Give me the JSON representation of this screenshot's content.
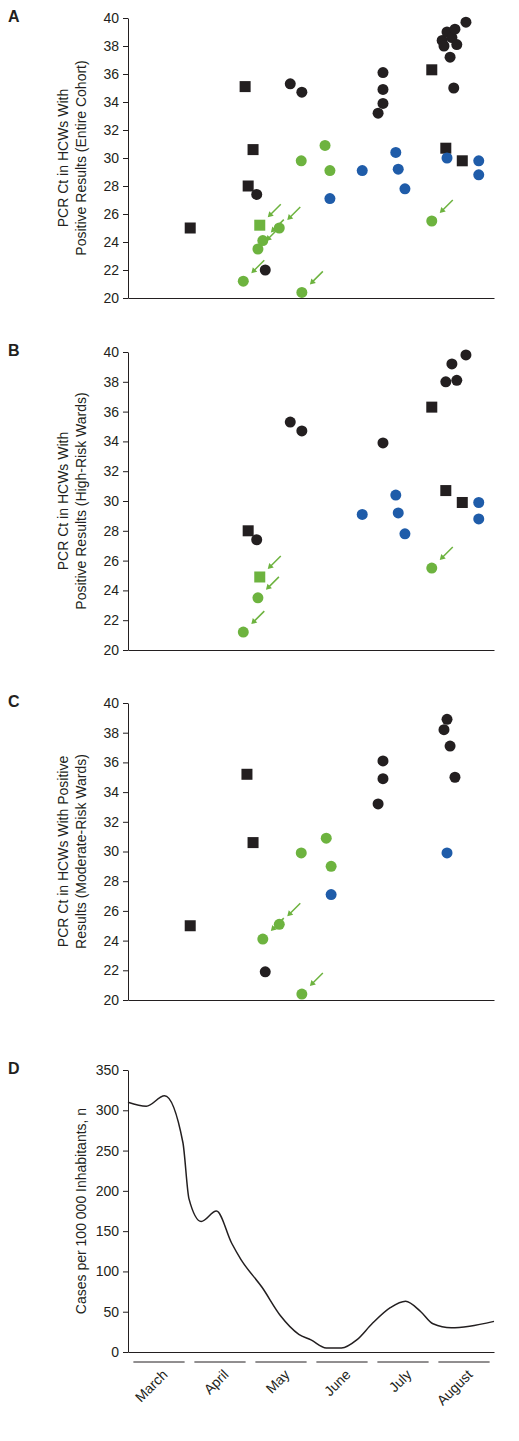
{
  "chart_data": [
    {
      "type": "scatter",
      "title": "A",
      "y_label": [
        "PCR Ct in HCWs With",
        "Positive Results (Entire Cohort)"
      ],
      "xlim": [
        0,
        6
      ],
      "ylim": [
        20,
        40
      ],
      "yticks": [
        20,
        22,
        24,
        26,
        28,
        30,
        32,
        34,
        36,
        38,
        40
      ],
      "tick_labels": "y",
      "series": [
        {
          "color": "#231f20",
          "marker": "circle",
          "x": [
            2.11,
            2.25,
            2.66,
            2.85,
            4.1,
            4.18,
            4.18,
            4.18,
            5.15,
            5.18,
            5.23,
            5.28,
            5.31,
            5.34,
            5.36,
            5.39,
            5.54
          ],
          "values": [
            27.4,
            22.0,
            35.3,
            34.7,
            33.2,
            36.1,
            34.9,
            33.9,
            38.4,
            38.0,
            39.0,
            37.2,
            38.6,
            35.0,
            39.2,
            38.1,
            39.7
          ]
        },
        {
          "color": "#231f20",
          "marker": "square",
          "x": [
            1.02,
            1.92,
            1.97,
            2.05,
            4.98,
            5.21,
            5.48
          ],
          "values": [
            25.0,
            35.1,
            28.0,
            30.6,
            36.3,
            30.7,
            29.8
          ]
        },
        {
          "color": "#6db33f",
          "marker": "circle",
          "x": [
            2.84,
            3.23,
            3.31
          ],
          "values": [
            29.8,
            30.9,
            29.1
          ]
        },
        {
          "color": "#6db33f",
          "marker": "arrowed-circle",
          "x": [
            1.89,
            2.13,
            2.21,
            2.48,
            2.85,
            4.98
          ],
          "values": [
            21.2,
            23.5,
            24.1,
            25.0,
            20.4,
            25.5
          ]
        },
        {
          "color": "#6db33f",
          "marker": "arrowed-square",
          "x": [
            2.16
          ],
          "values": [
            25.2
          ]
        },
        {
          "color": "#1f5ca9",
          "marker": "circle",
          "x": [
            3.31,
            3.84,
            4.39,
            4.43,
            4.54,
            5.23,
            5.75,
            5.75
          ],
          "values": [
            27.1,
            29.1,
            30.4,
            29.2,
            27.8,
            30.0,
            29.8,
            28.8
          ]
        }
      ]
    },
    {
      "type": "scatter",
      "title": "B",
      "y_label": [
        "PCR Ct in HCWs With",
        "Positive Results (High-Risk Wards)"
      ],
      "xlim": [
        0,
        6
      ],
      "ylim": [
        20,
        40
      ],
      "yticks": [
        20,
        22,
        24,
        26,
        28,
        30,
        32,
        34,
        36,
        38,
        40
      ],
      "tick_labels": "y",
      "series": [
        {
          "color": "#231f20",
          "marker": "circle",
          "x": [
            2.11,
            2.66,
            2.85,
            4.18,
            5.21,
            5.31,
            5.39,
            5.54
          ],
          "values": [
            27.4,
            35.3,
            34.7,
            33.9,
            38.0,
            39.2,
            38.1,
            39.8
          ]
        },
        {
          "color": "#231f20",
          "marker": "square",
          "x": [
            1.97,
            4.98,
            5.21,
            5.48
          ],
          "values": [
            28.0,
            36.3,
            30.7,
            29.9
          ]
        },
        {
          "color": "#6db33f",
          "marker": "arrowed-circle",
          "x": [
            1.89,
            2.13,
            4.98
          ],
          "values": [
            21.2,
            23.5,
            25.5
          ]
        },
        {
          "color": "#6db33f",
          "marker": "arrowed-square",
          "x": [
            2.16
          ],
          "values": [
            24.9
          ]
        },
        {
          "color": "#1f5ca9",
          "marker": "circle",
          "x": [
            3.84,
            4.39,
            4.43,
            4.54,
            5.75,
            5.75
          ],
          "values": [
            29.1,
            30.4,
            29.2,
            27.8,
            29.9,
            28.8
          ]
        }
      ]
    },
    {
      "type": "scatter",
      "title": "C",
      "y_label": [
        "PCR Ct in HCWs With Positive",
        "Results (Moderate-Risk Wards)"
      ],
      "xlim": [
        0,
        6
      ],
      "ylim": [
        20,
        40
      ],
      "yticks": [
        20,
        22,
        24,
        26,
        28,
        30,
        32,
        34,
        36,
        38,
        40
      ],
      "tick_labels": "y",
      "series": [
        {
          "color": "#231f20",
          "marker": "circle",
          "x": [
            2.25,
            4.1,
            4.18,
            4.18,
            5.18,
            5.23,
            5.28,
            5.36
          ],
          "values": [
            21.9,
            33.2,
            36.1,
            34.9,
            38.2,
            38.9,
            37.1,
            35.0
          ]
        },
        {
          "color": "#231f20",
          "marker": "square",
          "x": [
            1.02,
            1.95,
            2.05
          ],
          "values": [
            25.0,
            35.2,
            30.6
          ]
        },
        {
          "color": "#6db33f",
          "marker": "circle",
          "x": [
            2.84,
            3.25,
            3.33
          ],
          "values": [
            29.9,
            30.9,
            29.0
          ]
        },
        {
          "color": "#6db33f",
          "marker": "arrowed-circle",
          "x": [
            2.21,
            2.48,
            2.85
          ],
          "values": [
            24.1,
            25.1,
            20.4
          ]
        },
        {
          "color": "#1f5ca9",
          "marker": "circle",
          "x": [
            3.33,
            5.23
          ],
          "values": [
            27.1,
            29.9
          ]
        }
      ]
    },
    {
      "type": "line",
      "title": "D",
      "y_label": [
        "Cases per 100 000 Inhabitants, n"
      ],
      "color": "#231f20",
      "xlim": [
        0,
        6
      ],
      "ylim": [
        0,
        350
      ],
      "yticks": [
        0,
        50,
        100,
        150,
        200,
        250,
        300,
        350
      ],
      "xticks": [
        {
          "value": 0.5,
          "label": "March"
        },
        {
          "value": 1.5,
          "label": "April"
        },
        {
          "value": 2.5,
          "label": "May"
        },
        {
          "value": 3.5,
          "label": "June"
        },
        {
          "value": 4.5,
          "label": "July"
        },
        {
          "value": 5.5,
          "label": "August"
        }
      ],
      "x": [
        0,
        0.3,
        0.6,
        0.9,
        1.0,
        1.2,
        1.45,
        1.7,
        1.85,
        2.2,
        2.5,
        2.8,
        3.0,
        3.25,
        3.5,
        3.75,
        4.0,
        4.3,
        4.55,
        4.8,
        5.0,
        5.3,
        5.6,
        6.0
      ],
      "values": [
        310,
        305,
        318,
        260,
        190,
        162,
        175,
        135,
        115,
        80,
        45,
        22,
        15,
        5,
        5,
        15,
        35,
        55,
        63,
        50,
        35,
        30,
        32,
        38
      ]
    }
  ]
}
